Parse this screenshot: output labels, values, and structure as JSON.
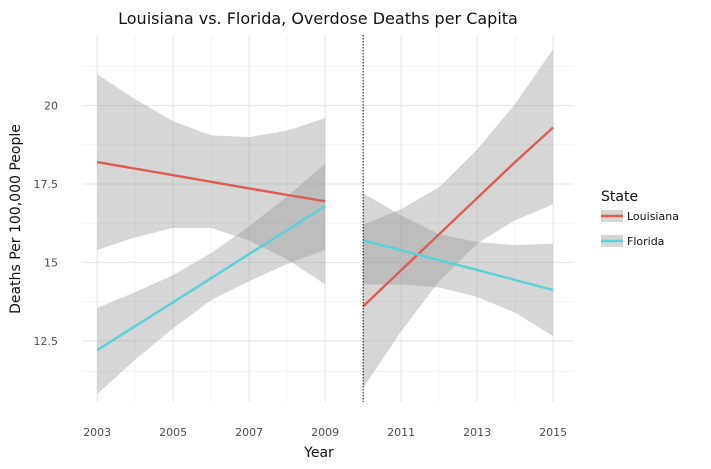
{
  "chart_data": {
    "type": "line",
    "title": "Louisiana vs. Florida, Overdose Deaths per Capita",
    "xlabel": "Year",
    "ylabel": "Deaths Per 100,000 People",
    "xlim": [
      2002.6,
      2015.55
    ],
    "ylim": [
      10.55,
      22.25
    ],
    "x_ticks": [
      2003,
      2005,
      2007,
      2009,
      2011,
      2013,
      2015
    ],
    "x_tick_labels": [
      "2003",
      "2005",
      "2007",
      "2009",
      "2011",
      "2013",
      "2015"
    ],
    "y_ticks": [
      12.5,
      15,
      17.5,
      20
    ],
    "y_tick_labels": [
      "12.5",
      "15",
      "17.5",
      "20"
    ],
    "vertical_line_x": 2010,
    "grid": true,
    "legend": {
      "title": "State",
      "position": "right"
    },
    "series": [
      {
        "name": "Louisiana",
        "color": "#d95f54",
        "segments": [
          {
            "x": [
              2003,
              2004,
              2005,
              2006,
              2007,
              2008,
              2009
            ],
            "y": [
              18.2,
              17.99,
              17.78,
              17.57,
              17.36,
              17.15,
              16.95
            ],
            "ci_lower": [
              15.4,
              15.8,
              16.1,
              16.1,
              15.7,
              15.1,
              14.3
            ],
            "ci_upper": [
              21.0,
              20.2,
              19.5,
              19.05,
              19.0,
              19.2,
              19.6
            ]
          },
          {
            "x": [
              2010,
              2011,
              2012,
              2013,
              2014,
              2015
            ],
            "y": [
              13.6,
              14.75,
              15.9,
              17.05,
              18.2,
              19.3
            ],
            "ci_lower": [
              11.0,
              12.8,
              14.4,
              15.6,
              16.35,
              16.85
            ],
            "ci_upper": [
              16.2,
              16.7,
              17.4,
              18.6,
              20.05,
              21.8
            ]
          }
        ]
      },
      {
        "name": "Florida",
        "color": "#5bd1d9",
        "segments": [
          {
            "x": [
              2003,
              2004,
              2005,
              2006,
              2007,
              2008,
              2009
            ],
            "y": [
              12.2,
              12.97,
              13.73,
              14.5,
              15.27,
              16.03,
              16.8
            ],
            "ci_lower": [
              10.8,
              11.9,
              12.9,
              13.8,
              14.4,
              14.95,
              15.4
            ],
            "ci_upper": [
              13.55,
              14.05,
              14.6,
              15.3,
              16.15,
              17.1,
              18.15
            ]
          },
          {
            "x": [
              2010,
              2011,
              2012,
              2013,
              2014,
              2015
            ],
            "y": [
              15.7,
              15.39,
              15.07,
              14.76,
              14.44,
              14.12
            ],
            "ci_lower": [
              14.3,
              14.3,
              14.2,
              13.9,
              13.4,
              12.65
            ],
            "ci_upper": [
              17.2,
              16.5,
              15.9,
              15.65,
              15.55,
              15.6
            ]
          }
        ]
      }
    ]
  },
  "colors": {
    "ribbon": "#999999",
    "grid_major": "#e3e3e3",
    "grid_minor": "#f3f3f3",
    "vline": "#111111"
  }
}
